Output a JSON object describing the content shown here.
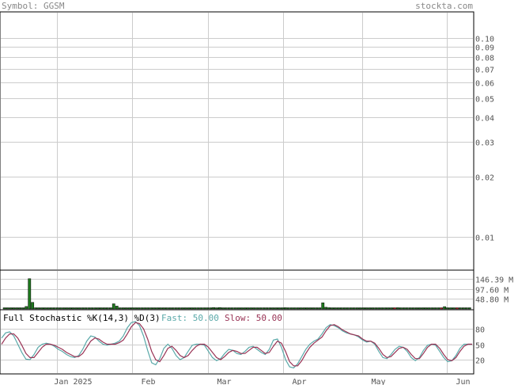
{
  "header": {
    "symbol_label": "Symbol: GGSM",
    "site": "stockta.com"
  },
  "chart_data": [
    {
      "type": "line",
      "panel": "price",
      "scale": "log",
      "y_ticks": [
        "0.10",
        "0.09",
        "0.08",
        "0.07",
        "0.06",
        "0.05",
        "0.04",
        "0.03",
        "0.02",
        "0.01"
      ],
      "y_tick_values": [
        0.1,
        0.09,
        0.08,
        0.07,
        0.06,
        0.05,
        0.04,
        0.03,
        0.02,
        0.01
      ],
      "x_ticks": [
        "Jan 2025",
        "Feb",
        "Mar",
        "Apr",
        "May",
        "Jun"
      ],
      "grid": true
    },
    {
      "type": "bar",
      "panel": "volume",
      "y_ticks": [
        "146.39 M",
        "97.60 M",
        "48.80 M"
      ],
      "y_tick_values": [
        146.39,
        97.6,
        48.8
      ],
      "unit": "M",
      "values": [
        5,
        4,
        5,
        4,
        3,
        4,
        5,
        12,
        147,
        32,
        4,
        5,
        4,
        4,
        4,
        4,
        4,
        4,
        3,
        3,
        4,
        2,
        2,
        2,
        3,
        3,
        2,
        2,
        4,
        2,
        3,
        2,
        2,
        2,
        3,
        25,
        14,
        3,
        2,
        2,
        2,
        2,
        3,
        2,
        2,
        2,
        2,
        2,
        2,
        2,
        2,
        2,
        2,
        2,
        3,
        2,
        2,
        2,
        2,
        2,
        2,
        2,
        2,
        2,
        2,
        2,
        3,
        7,
        2,
        7,
        5,
        2,
        2,
        2,
        2,
        2,
        2,
        2,
        2,
        2,
        2,
        2,
        2,
        2,
        2,
        2,
        2,
        2,
        2,
        2,
        6,
        2,
        5,
        2,
        3,
        2,
        2,
        2,
        2,
        2,
        2,
        2,
        30,
        8,
        6,
        2,
        2,
        2,
        2,
        2,
        2,
        2,
        2,
        2,
        2,
        2,
        2,
        2,
        2,
        2,
        2,
        2,
        2,
        2,
        2,
        2,
        6,
        2,
        2,
        2,
        2,
        2,
        2,
        2,
        2,
        2,
        2,
        2,
        2,
        2,
        2,
        11,
        3,
        2,
        3,
        2,
        4,
        2,
        2,
        2
      ],
      "colors": {
        "up": "#1e7a1e",
        "down": "#cc2222",
        "outline": "#000000"
      },
      "down_indices": [
        125,
        140,
        145
      ]
    },
    {
      "type": "line",
      "panel": "stochastic",
      "title": "Full Stochastic %K(14,3) %D(3)",
      "fast_label": "Fast: 50.00",
      "slow_label": "Slow: 50.00",
      "y_ticks": [
        "80",
        "50",
        "20"
      ],
      "y_tick_values": [
        80,
        50,
        20
      ],
      "ylim": [
        0,
        100
      ],
      "series": [
        {
          "name": "Fast",
          "color": "#5aa9a9",
          "values": [
            62,
            72,
            74,
            66,
            50,
            34,
            21,
            20,
            30,
            44,
            50,
            52,
            50,
            46,
            40,
            36,
            30,
            26,
            24,
            28,
            40,
            56,
            66,
            64,
            56,
            50,
            48,
            50,
            52,
            56,
            66,
            82,
            92,
            94,
            86,
            66,
            38,
            14,
            10,
            22,
            42,
            50,
            42,
            28,
            20,
            24,
            36,
            48,
            50,
            50,
            48,
            36,
            24,
            18,
            22,
            32,
            40,
            38,
            32,
            30,
            36,
            44,
            46,
            40,
            34,
            30,
            40,
            58,
            60,
            44,
            20,
            6,
            4,
            12,
            26,
            40,
            50,
            56,
            60,
            70,
            82,
            88,
            86,
            82,
            76,
            72,
            70,
            68,
            64,
            58,
            54,
            56,
            50,
            36,
            24,
            22,
            30,
            40,
            46,
            44,
            36,
            24,
            18,
            24,
            38,
            48,
            50,
            48,
            36,
            24,
            16,
            18,
            28,
            42,
            50,
            50,
            50
          ],
          "stroke_hint": "fast"
        },
        {
          "name": "Slow",
          "color": "#993355",
          "values": [
            50,
            62,
            70,
            70,
            62,
            48,
            32,
            24,
            24,
            34,
            44,
            50,
            50,
            48,
            44,
            40,
            34,
            30,
            26,
            26,
            32,
            44,
            56,
            62,
            60,
            54,
            50,
            50,
            50,
            53,
            58,
            70,
            84,
            92,
            90,
            80,
            60,
            36,
            20,
            16,
            28,
            42,
            46,
            38,
            28,
            24,
            28,
            38,
            46,
            50,
            50,
            44,
            34,
            24,
            20,
            26,
            34,
            38,
            36,
            32,
            32,
            38,
            44,
            44,
            38,
            32,
            34,
            46,
            56,
            52,
            36,
            16,
            8,
            8,
            18,
            32,
            44,
            52,
            58,
            64,
            76,
            86,
            88,
            84,
            78,
            74,
            70,
            68,
            66,
            60,
            56,
            56,
            52,
            42,
            30,
            24,
            26,
            34,
            42,
            44,
            40,
            30,
            22,
            22,
            32,
            44,
            50,
            50,
            42,
            30,
            20,
            18,
            24,
            36,
            46,
            50,
            50
          ],
          "stroke_hint": "slow"
        }
      ],
      "x_ticks": [
        "Jan 2025",
        "Feb",
        "Mar",
        "Apr",
        "May",
        "Jun"
      ]
    }
  ]
}
